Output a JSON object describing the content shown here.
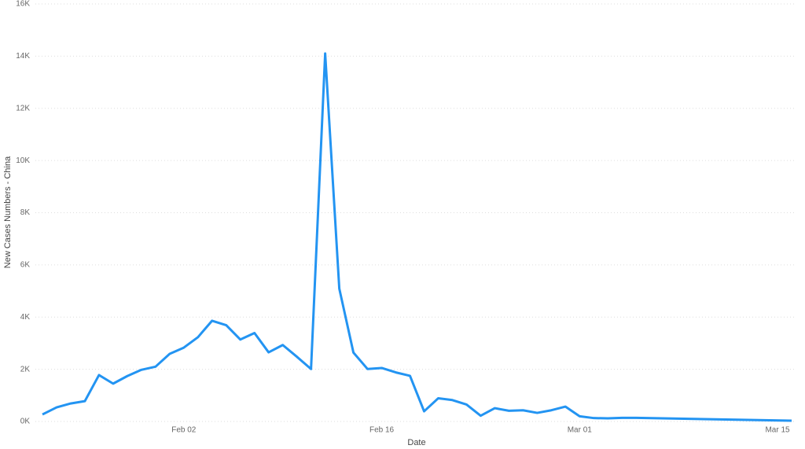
{
  "chart_data": {
    "type": "line",
    "x_label": "Date",
    "y_label": "New Cases Numbers - China",
    "x": [
      "Jan 23",
      "Jan 24",
      "Jan 25",
      "Jan 26",
      "Jan 27",
      "Jan 28",
      "Jan 29",
      "Jan 30",
      "Jan 31",
      "Feb 01",
      "Feb 02",
      "Feb 03",
      "Feb 04",
      "Feb 05",
      "Feb 06",
      "Feb 07",
      "Feb 08",
      "Feb 09",
      "Feb 10",
      "Feb 11",
      "Feb 12",
      "Feb 13",
      "Feb 14",
      "Feb 15",
      "Feb 16",
      "Feb 17",
      "Feb 18",
      "Feb 19",
      "Feb 20",
      "Feb 21",
      "Feb 22",
      "Feb 23",
      "Feb 24",
      "Feb 25",
      "Feb 26",
      "Feb 27",
      "Feb 28",
      "Feb 29",
      "Mar 01",
      "Mar 02",
      "Mar 03",
      "Mar 04",
      "Mar 05",
      "Mar 16"
    ],
    "series": [
      {
        "name": "New Cases Numbers - China",
        "color": "#2394f2",
        "values": [
          270,
          540,
          690,
          780,
          1780,
          1450,
          1740,
          1980,
          2100,
          2590,
          2830,
          3230,
          3860,
          3690,
          3140,
          3390,
          2650,
          2930,
          2480,
          2010,
          14100,
          5090,
          2640,
          2010,
          2050,
          1880,
          1750,
          390,
          890,
          820,
          650,
          220,
          510,
          410,
          430,
          330,
          430,
          570,
          200,
          130,
          120,
          140,
          140,
          30
        ]
      }
    ],
    "xlim": [
      "Jan 23",
      "Mar 16"
    ],
    "xticks": [
      "Feb 02",
      "Feb 16",
      "Mar 01",
      "Mar 15"
    ],
    "ylim": [
      0,
      16000
    ],
    "yticks": [
      {
        "value": 0,
        "label": "0K"
      },
      {
        "value": 2000,
        "label": "2K"
      },
      {
        "value": 4000,
        "label": "4K"
      },
      {
        "value": 6000,
        "label": "6K"
      },
      {
        "value": 8000,
        "label": "8K"
      },
      {
        "value": 10000,
        "label": "10K"
      },
      {
        "value": 12000,
        "label": "12K"
      },
      {
        "value": 14000,
        "label": "14K"
      },
      {
        "value": 16000,
        "label": "16K"
      }
    ],
    "grid": true
  }
}
